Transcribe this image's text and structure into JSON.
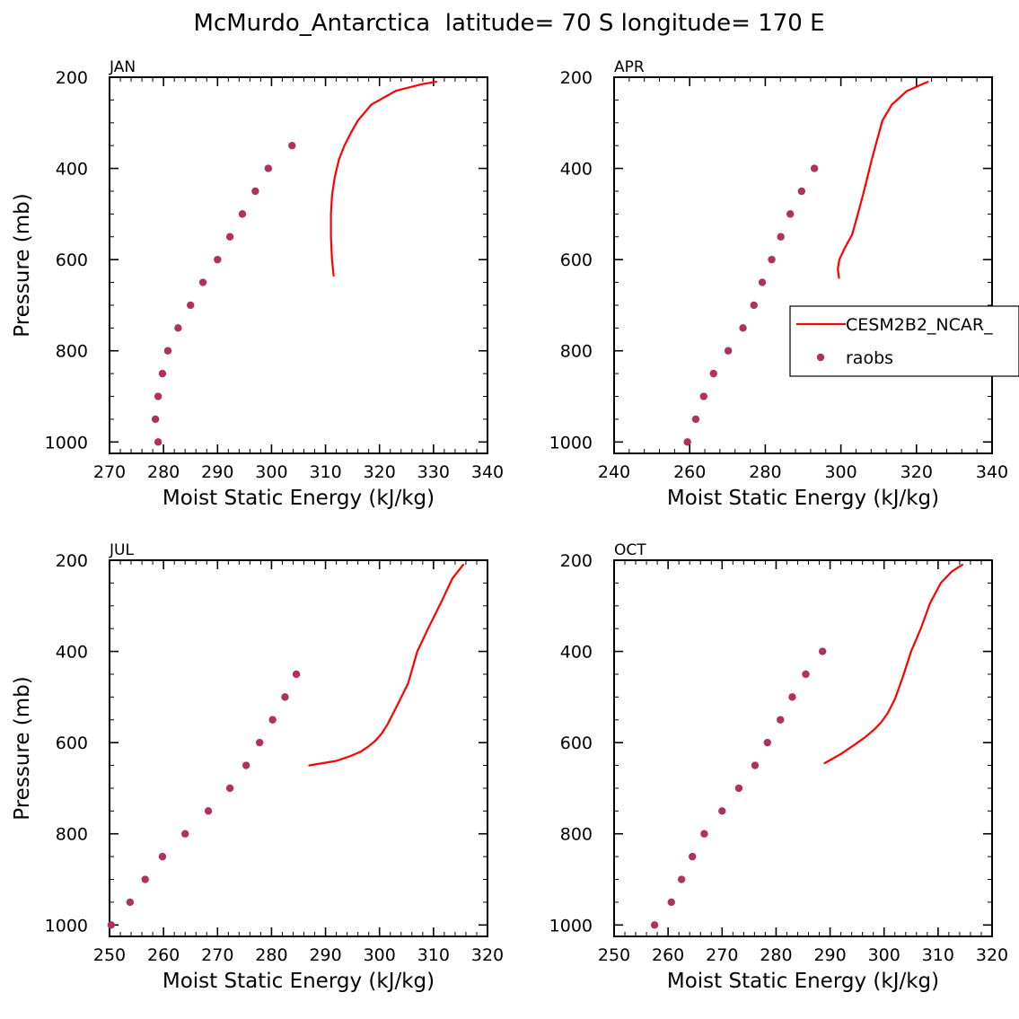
{
  "page_title": "McMurdo_Antarctica  latitude= 70 S longitude= 170 E",
  "colors": {
    "model": "#ff0000",
    "obs": "#b03060",
    "axis": "#000000"
  },
  "legend": {
    "model_label": "CESM2B2_NCAR_",
    "obs_label": "raobs"
  },
  "chart_data": [
    {
      "type": "scatter",
      "panel": "JAN",
      "title": "JAN",
      "xlabel": "Moist Static Energy (kJ/kg)",
      "ylabel": "Pressure (mb)",
      "xlim": [
        270,
        340
      ],
      "xticks": [
        270,
        280,
        290,
        300,
        310,
        320,
        330,
        340
      ],
      "ylim": [
        1025,
        200
      ],
      "yticks": [
        200,
        400,
        600,
        800,
        1000
      ],
      "series": [
        {
          "name": "CESM2B2_NCAR_",
          "style": "line",
          "x": [
            311.5,
            311.2,
            311.0,
            311.0,
            311.2,
            311.7,
            312.5,
            313.5,
            314.8,
            316.0,
            318.5,
            323.0,
            328.0,
            330.5
          ],
          "y": [
            635,
            600,
            550,
            500,
            460,
            420,
            380,
            350,
            320,
            295,
            260,
            230,
            215,
            210
          ]
        },
        {
          "name": "raobs",
          "style": "marker",
          "x": [
            279.0,
            278.5,
            279.0,
            279.8,
            280.8,
            282.7,
            285.0,
            287.3,
            290.0,
            292.3,
            294.6,
            297.0,
            299.4,
            303.8
          ],
          "y": [
            1000,
            950,
            900,
            850,
            800,
            750,
            700,
            650,
            600,
            550,
            500,
            450,
            400,
            350
          ]
        }
      ]
    },
    {
      "type": "scatter",
      "panel": "APR",
      "title": "APR",
      "xlabel": "Moist Static Energy (kJ/kg)",
      "ylabel": "",
      "xlim": [
        240,
        340
      ],
      "xticks": [
        240,
        260,
        280,
        300,
        320,
        340
      ],
      "ylim": [
        1025,
        200
      ],
      "yticks": [
        200,
        400,
        600,
        800,
        1000
      ],
      "legend": true,
      "series": [
        {
          "name": "CESM2B2_NCAR_",
          "style": "line",
          "x": [
            299.5,
            299.2,
            299.6,
            301.0,
            303.0,
            304.5,
            305.8,
            307.0,
            308.2,
            309.5,
            311.0,
            313.5,
            317.5,
            323.0
          ],
          "y": [
            640,
            620,
            600,
            575,
            545,
            500,
            460,
            420,
            380,
            340,
            295,
            260,
            230,
            210
          ]
        },
        {
          "name": "raobs",
          "style": "marker",
          "x": [
            259.4,
            261.6,
            263.7,
            266.3,
            270.2,
            274.1,
            277.0,
            279.2,
            281.7,
            284.1,
            286.6,
            289.6,
            293.0
          ],
          "y": [
            1000,
            950,
            900,
            850,
            800,
            750,
            700,
            650,
            600,
            550,
            500,
            450,
            400
          ]
        }
      ]
    },
    {
      "type": "scatter",
      "panel": "JUL",
      "title": "JUL",
      "xlabel": "Moist Static Energy (kJ/kg)",
      "ylabel": "Pressure (mb)",
      "xlim": [
        250,
        320
      ],
      "xticks": [
        250,
        260,
        270,
        280,
        290,
        300,
        310,
        320
      ],
      "ylim": [
        1025,
        200
      ],
      "yticks": [
        200,
        400,
        600,
        800,
        1000
      ],
      "series": [
        {
          "name": "CESM2B2_NCAR_",
          "style": "line",
          "x": [
            287.0,
            292.0,
            294.5,
            296.5,
            298.0,
            299.3,
            300.4,
            301.5,
            303.2,
            305.3,
            307.0,
            309.0,
            311.5,
            313.5,
            315.5
          ],
          "y": [
            650,
            640,
            630,
            620,
            608,
            595,
            580,
            560,
            520,
            470,
            400,
            350,
            290,
            240,
            210
          ]
        },
        {
          "name": "raobs",
          "style": "marker",
          "x": [
            250.3,
            253.8,
            256.6,
            259.8,
            264.0,
            268.3,
            272.3,
            275.3,
            277.8,
            280.2,
            282.5,
            284.6
          ],
          "y": [
            1000,
            950,
            900,
            850,
            800,
            750,
            700,
            650,
            600,
            550,
            500,
            450
          ]
        }
      ]
    },
    {
      "type": "scatter",
      "panel": "OCT",
      "title": "OCT",
      "xlabel": "Moist Static Energy (kJ/kg)",
      "ylabel": "",
      "xlim": [
        250,
        320
      ],
      "xticks": [
        250,
        260,
        270,
        280,
        290,
        300,
        310,
        320
      ],
      "ylim": [
        1025,
        200
      ],
      "yticks": [
        200,
        400,
        600,
        800,
        1000
      ],
      "series": [
        {
          "name": "CESM2B2_NCAR_",
          "style": "line",
          "x": [
            289.0,
            292.0,
            294.5,
            296.5,
            298.3,
            299.5,
            300.7,
            302.0,
            303.5,
            305.0,
            306.8,
            308.5,
            310.5,
            312.5,
            314.5
          ],
          "y": [
            645,
            625,
            605,
            588,
            570,
            555,
            535,
            505,
            455,
            400,
            350,
            295,
            250,
            225,
            210
          ]
        },
        {
          "name": "raobs",
          "style": "marker",
          "x": [
            257.5,
            260.6,
            262.5,
            264.5,
            266.7,
            270.0,
            273.1,
            276.1,
            278.4,
            280.8,
            283.0,
            285.5,
            288.6
          ],
          "y": [
            1000,
            950,
            900,
            850,
            800,
            750,
            700,
            650,
            600,
            550,
            500,
            450,
            400
          ]
        }
      ]
    }
  ]
}
